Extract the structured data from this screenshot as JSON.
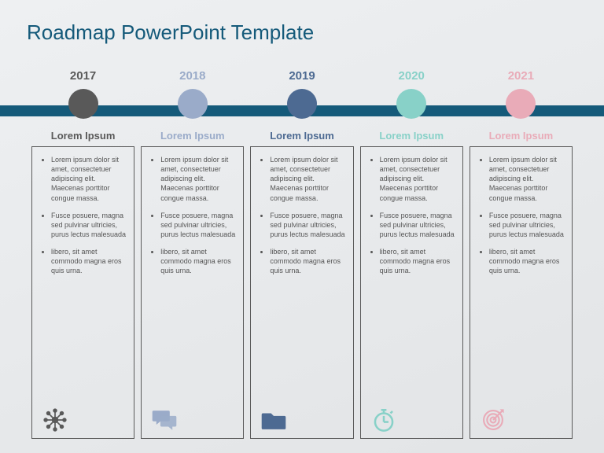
{
  "title": "Roadmap PowerPoint Template",
  "timeline_bar_color": "#155a7a",
  "background_gradient": [
    "#eef0f2",
    "#e2e4e6"
  ],
  "border_color": "#5a5a5a",
  "body_text_color": "#555555",
  "font_sizes": {
    "title": 26,
    "year": 15,
    "subtitle": 13,
    "body": 9
  },
  "bullets_text": [
    "Lorem ipsum dolor sit amet, consectetuer adipiscing elit. Maecenas porttitor congue massa.",
    "Fusce posuere, magna sed pulvinar ultricies, purus lectus malesuada",
    "libero, sit amet commodo magna eros quis urna."
  ],
  "columns": [
    {
      "year": "2017",
      "subtitle": "Lorem Ipsum",
      "color": "#595959",
      "icon": "network"
    },
    {
      "year": "2018",
      "subtitle": "Lorem Ipsum",
      "color": "#9aabc9",
      "icon": "chat"
    },
    {
      "year": "2019",
      "subtitle": "Lorem Ipsum",
      "color": "#4d6a92",
      "icon": "folder"
    },
    {
      "year": "2020",
      "subtitle": "Lorem Ipsum",
      "color": "#88d1c8",
      "icon": "stopwatch"
    },
    {
      "year": "2021",
      "subtitle": "Lorem Ipsum",
      "color": "#e9abb8",
      "icon": "target"
    }
  ]
}
